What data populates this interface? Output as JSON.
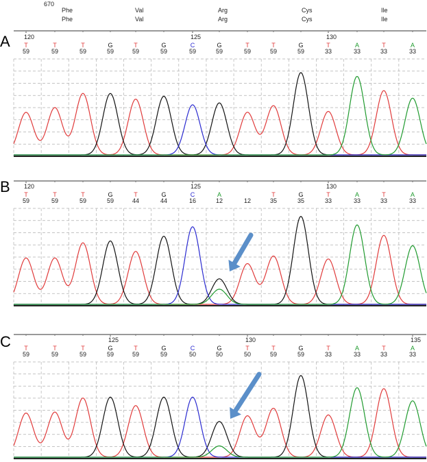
{
  "header": {
    "codon_position": "670",
    "amino_acids_row1": [
      "Phe",
      "Val",
      "Arg",
      "Cys",
      "Ile"
    ],
    "amino_acids_row2": [
      "Phe",
      "Val",
      "Arg",
      "Cys",
      "Ile"
    ]
  },
  "colors": {
    "T": "#e03a3a",
    "G": "#111111",
    "C": "#2a2ad0",
    "A": "#1f9a2e",
    "arrow": "#5b8fc9",
    "grid": "#b0b0b0"
  },
  "arrow_icons": [
    "blue-arrow-icon",
    "blue-arrow-icon"
  ],
  "chart_data": [
    {
      "type": "line",
      "panel_label": "A",
      "position_markers": [
        {
          "label": "120",
          "base_index": 0
        },
        {
          "label": "125",
          "base_index": 6
        },
        {
          "label": "130",
          "base_index": 11
        }
      ],
      "bases": [
        "T",
        "T",
        "T",
        "G",
        "T",
        "G",
        "C",
        "G",
        "T",
        "T",
        "G",
        "T",
        "A",
        "T",
        "A"
      ],
      "quality": [
        "59",
        "59",
        "59",
        "59",
        "59",
        "59",
        "59",
        "59",
        "59",
        "59",
        "59",
        "33",
        "33",
        "33",
        "33"
      ],
      "series": [
        {
          "base": "T",
          "peaks": [
            {
              "index": 0,
              "height": 0.45
            },
            {
              "index": 1,
              "height": 0.5
            },
            {
              "index": 2,
              "height": 0.65
            },
            {
              "index": 4,
              "height": 0.59
            },
            {
              "index": 8,
              "height": 0.45
            },
            {
              "index": 9,
              "height": 0.52
            },
            {
              "index": 11,
              "height": 0.46
            },
            {
              "index": 13,
              "height": 0.68
            }
          ]
        },
        {
          "base": "G",
          "peaks": [
            {
              "index": 3,
              "height": 0.65
            },
            {
              "index": 5,
              "height": 0.62
            },
            {
              "index": 7,
              "height": 0.55
            },
            {
              "index": 10,
              "height": 0.87
            }
          ]
        },
        {
          "base": "C",
          "peaks": [
            {
              "index": 6,
              "height": 0.53
            }
          ]
        },
        {
          "base": "A",
          "peaks": [
            {
              "index": 12,
              "height": 0.83
            },
            {
              "index": 14,
              "height": 0.6
            }
          ]
        }
      ]
    },
    {
      "type": "line",
      "panel_label": "B",
      "position_markers": [
        {
          "label": "120",
          "base_index": 0
        },
        {
          "label": "125",
          "base_index": 6
        },
        {
          "label": "130",
          "base_index": 11
        }
      ],
      "bases": [
        "T",
        "T",
        "T",
        "G",
        "T",
        "G",
        "C",
        "A",
        "",
        "T",
        "G",
        "T",
        "A",
        "T",
        "A"
      ],
      "quality": [
        "59",
        "59",
        "59",
        "59",
        "44",
        "44",
        "16",
        "12",
        "12",
        "35",
        "35",
        "33",
        "33",
        "33",
        "33"
      ],
      "series": [
        {
          "base": "T",
          "peaks": [
            {
              "index": 0,
              "height": 0.49
            },
            {
              "index": 1,
              "height": 0.49
            },
            {
              "index": 2,
              "height": 0.65
            },
            {
              "index": 4,
              "height": 0.56
            },
            {
              "index": 8,
              "height": 0.43
            },
            {
              "index": 9,
              "height": 0.51
            },
            {
              "index": 11,
              "height": 0.48
            },
            {
              "index": 13,
              "height": 0.73
            }
          ]
        },
        {
          "base": "G",
          "peaks": [
            {
              "index": 3,
              "height": 0.67
            },
            {
              "index": 5,
              "height": 0.72
            },
            {
              "index": 7,
              "height": 0.27
            },
            {
              "index": 10,
              "height": 0.93
            }
          ]
        },
        {
          "base": "C",
          "peaks": [
            {
              "index": 6,
              "height": 0.82
            }
          ]
        },
        {
          "base": "A",
          "peaks": [
            {
              "index": 7,
              "height": 0.16
            },
            {
              "index": 12,
              "height": 0.84
            },
            {
              "index": 14,
              "height": 0.62
            }
          ]
        }
      ]
    },
    {
      "type": "line",
      "panel_label": "C",
      "position_markers": [
        {
          "label": "125",
          "base_index": 3
        },
        {
          "label": "130",
          "base_index": 8
        },
        {
          "label": "135",
          "base_index": 14
        }
      ],
      "bases": [
        "T",
        "T",
        "T",
        "G",
        "T",
        "G",
        "C",
        "G",
        "T",
        "T",
        "G",
        "T",
        "A",
        "T",
        "A"
      ],
      "quality": [
        "59",
        "59",
        "59",
        "59",
        "59",
        "59",
        "50",
        "50",
        "50",
        "59",
        "59",
        "33",
        "33",
        "33",
        "33"
      ],
      "series": [
        {
          "base": "T",
          "peaks": [
            {
              "index": 0,
              "height": 0.47
            },
            {
              "index": 1,
              "height": 0.48
            },
            {
              "index": 2,
              "height": 0.63
            },
            {
              "index": 4,
              "height": 0.55
            },
            {
              "index": 8,
              "height": 0.44
            },
            {
              "index": 9,
              "height": 0.52
            },
            {
              "index": 11,
              "height": 0.45
            },
            {
              "index": 13,
              "height": 0.73
            }
          ]
        },
        {
          "base": "G",
          "peaks": [
            {
              "index": 3,
              "height": 0.64
            },
            {
              "index": 5,
              "height": 0.64
            },
            {
              "index": 7,
              "height": 0.38
            },
            {
              "index": 10,
              "height": 0.87
            }
          ]
        },
        {
          "base": "C",
          "peaks": [
            {
              "index": 6,
              "height": 0.64
            }
          ]
        },
        {
          "base": "A",
          "peaks": [
            {
              "index": 7,
              "height": 0.12
            },
            {
              "index": 12,
              "height": 0.74
            },
            {
              "index": 14,
              "height": 0.6
            }
          ]
        }
      ]
    }
  ]
}
